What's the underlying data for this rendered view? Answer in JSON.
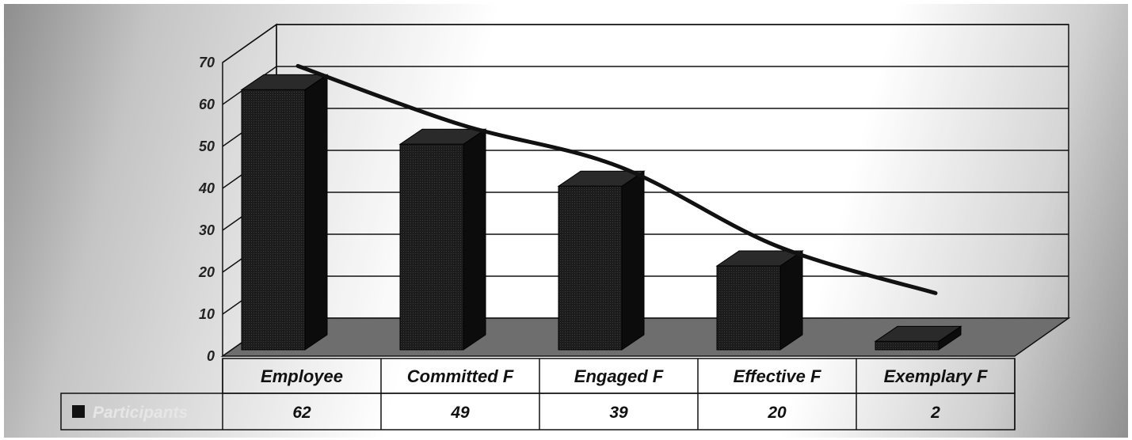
{
  "chart_data": {
    "type": "bar",
    "categories": [
      "Employee",
      "Committed F",
      "Engaged F",
      "Effective F",
      "Exemplary F"
    ],
    "series": [
      {
        "name": "Participants",
        "values": [
          62,
          49,
          39,
          20,
          2
        ],
        "color": "#1a1a1a"
      }
    ],
    "trendline": true,
    "y_ticks": [
      "0",
      "10",
      "20",
      "30",
      "40",
      "50",
      "60",
      "70"
    ],
    "ylim": [
      0,
      70
    ],
    "grid": true,
    "data_table": true,
    "three_d": true,
    "colors": {
      "bar": "#1a1a1a",
      "floor": "#6e6e6e",
      "trend": "#111111"
    }
  }
}
